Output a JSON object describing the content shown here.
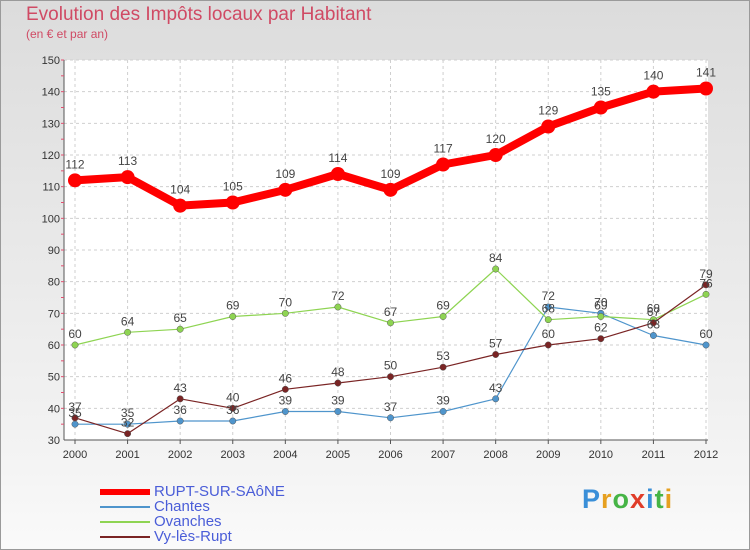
{
  "header": {
    "title": "Evolution des Impôts locaux par Habitant",
    "subtitle": "(en € et par an)"
  },
  "logo": {
    "letters": [
      "P",
      "r",
      "o",
      "x",
      "i",
      "t",
      "i"
    ],
    "colors": [
      "#3a8fd8",
      "#e6a020",
      "#46b446",
      "#e03c28",
      "#3a8fd8",
      "#46b446",
      "#e6a020"
    ]
  },
  "chart_data": {
    "type": "line",
    "x": [
      "2000",
      "2001",
      "2002",
      "2003",
      "2004",
      "2005",
      "2006",
      "2007",
      "2008",
      "2009",
      "2010",
      "2011",
      "2012"
    ],
    "ylim": [
      30,
      150
    ],
    "yticks": [
      "30",
      "40",
      "50",
      "60",
      "70",
      "80",
      "90",
      "100",
      "110",
      "120",
      "130",
      "140",
      "150"
    ],
    "grid": true,
    "legend_position": "bottom-left",
    "series": [
      {
        "name": "Chantes",
        "color": "#4f95cc",
        "values": [
          35,
          35,
          36,
          36,
          39,
          39,
          37,
          39,
          43,
          72,
          70,
          63,
          60
        ]
      },
      {
        "name": "Ovanches",
        "color": "#8ed452",
        "values": [
          60,
          64,
          65,
          69,
          70,
          72,
          67,
          69,
          84,
          68,
          69,
          68,
          76
        ]
      },
      {
        "name": "Vy-lès-Rupt",
        "color": "#7a2424",
        "values": [
          37,
          32,
          43,
          40,
          46,
          48,
          50,
          53,
          57,
          60,
          62,
          67,
          79
        ]
      },
      {
        "name": "RUPT-SUR-SAôNE",
        "color": "#ff0000",
        "values": [
          112,
          113,
          104,
          105,
          109,
          114,
          109,
          117,
          120,
          129,
          135,
          140,
          141
        ]
      }
    ],
    "labels": [
      [
        "35",
        "35",
        "36",
        "36",
        "39",
        "39",
        "37",
        "39",
        "43",
        "72",
        "70",
        "63",
        "60"
      ],
      [
        "60",
        "64",
        "65",
        "69",
        "70",
        "72",
        "67",
        "69",
        "84",
        "68",
        "69",
        "68",
        "76"
      ],
      [
        "37",
        "32",
        "43",
        "40",
        "46",
        "48",
        "50",
        "53",
        "57",
        "60",
        "62",
        "67",
        "79"
      ],
      [
        "112",
        "113",
        "104",
        "105",
        "109",
        "114",
        "109",
        "117",
        "120",
        "129",
        "135",
        "140",
        "141"
      ]
    ],
    "legend_order": [
      "RUPT-SUR-SAôNE",
      "Chantes",
      "Ovanches",
      "Vy-lès-Rupt"
    ]
  }
}
